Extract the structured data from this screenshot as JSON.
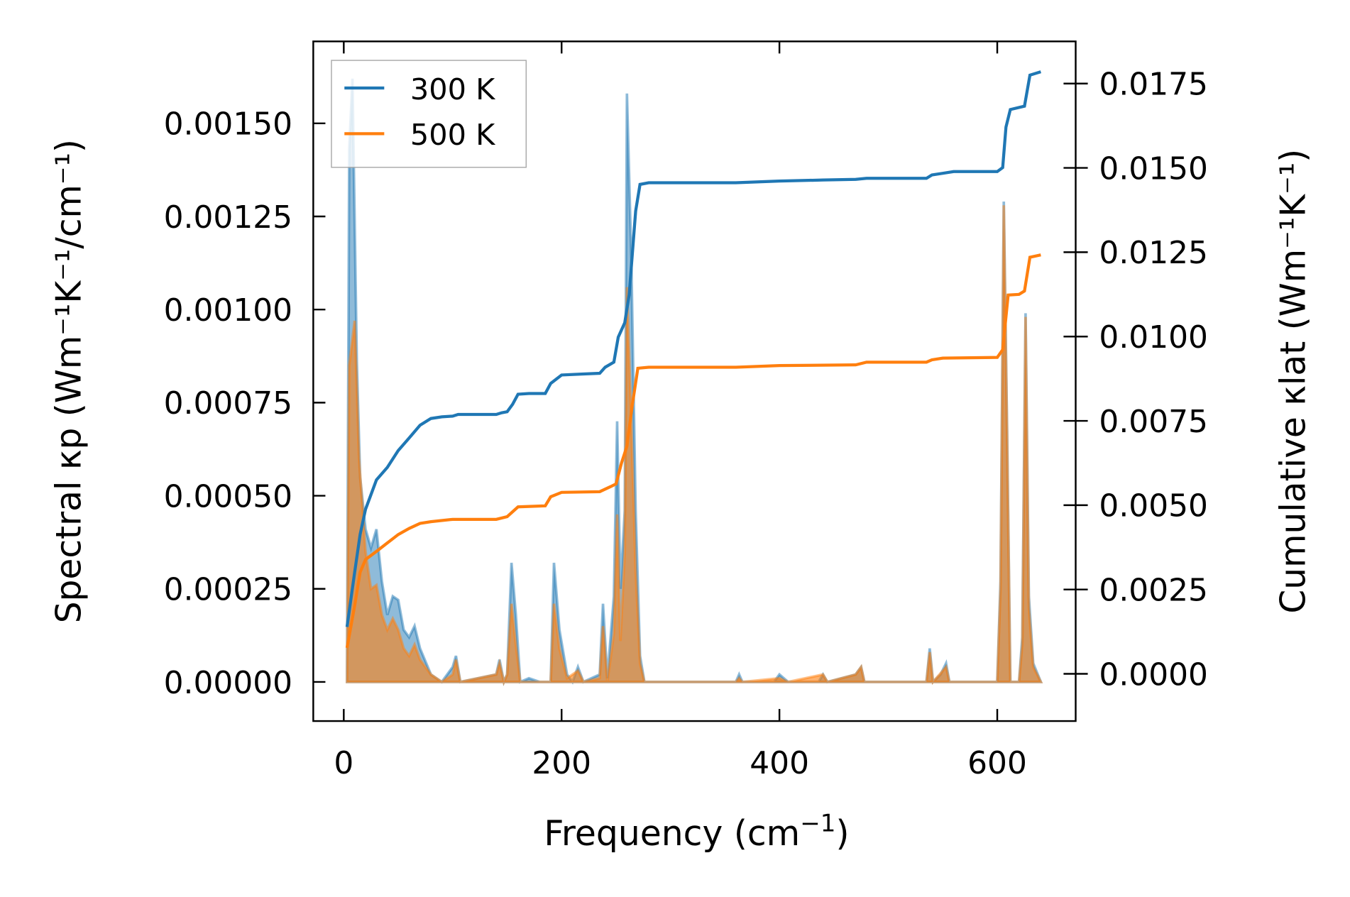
{
  "chart_data": {
    "type": "line",
    "xlabel": "Frequency (cm",
    "xlabel_sup": "−1",
    "xlabel_end": ")",
    "ylabel_left": "Spectral κp (Wm⁻¹K⁻¹/cm⁻¹)",
    "ylabel_right": "Cumulative κlat (Wm⁻¹K⁻¹)",
    "xlim": [
      -28,
      672
    ],
    "ylim_left": [
      -0.000105,
      0.00172
    ],
    "ylim_right": [
      -0.0014,
      0.01875
    ],
    "x_ticks": [
      0,
      200,
      400,
      600
    ],
    "x_tick_labels": [
      "0",
      "200",
      "400",
      "600"
    ],
    "y_left_ticks": [
      0,
      0.00025,
      0.0005,
      0.00075,
      0.001,
      0.00125,
      0.0015
    ],
    "y_left_tick_labels": [
      "0.00000",
      "0.00025",
      "0.00050",
      "0.00075",
      "0.00100",
      "0.00125",
      "0.00150"
    ],
    "y_right_ticks": [
      0,
      0.0025,
      0.005,
      0.0075,
      0.01,
      0.0125,
      0.015,
      0.0175
    ],
    "y_right_tick_labels": [
      "0.0000",
      "0.0025",
      "0.0050",
      "0.0075",
      "0.0100",
      "0.0125",
      "0.0150",
      "0.0175"
    ],
    "legend": {
      "placement": "top-left",
      "entries": [
        "300 K",
        "500 K"
      ]
    },
    "colors": {
      "300 K": "#1f77b4",
      "500 K": "#ff7f0e"
    },
    "series": [
      {
        "name": "300 K",
        "spectral": {
          "x": [
            3,
            5,
            8,
            12,
            15,
            20,
            25,
            30,
            35,
            40,
            45,
            50,
            55,
            60,
            65,
            70,
            80,
            90,
            100,
            103,
            107,
            140,
            143,
            147,
            150,
            154,
            158,
            162,
            170,
            180,
            190,
            193,
            198,
            205,
            210,
            215,
            220,
            235,
            238,
            242,
            248,
            251,
            254,
            258,
            260,
            264,
            268,
            272,
            276,
            360,
            363,
            366,
            395,
            400,
            408,
            436,
            440,
            444,
            470,
            475,
            478,
            535,
            538,
            541,
            548,
            553,
            556,
            600,
            603,
            606,
            609,
            612,
            620,
            623,
            626,
            629,
            633,
            640
          ],
          "y": [
            2.5e-05,
            0.00143,
            0.00162,
            0.00086,
            0.00055,
            0.00041,
            0.00036,
            0.00041,
            0.00027,
            0.00018,
            0.00023,
            0.00022,
            0.00014,
            0.00012,
            0.00015,
            9e-05,
            2e-05,
            0.0,
            4e-05,
            7e-05,
            0.0,
            2e-05,
            6e-05,
            0.0,
            2e-05,
            0.00032,
            0.00018,
            0.0,
            1e-05,
            0.0,
            0.0,
            0.00032,
            0.00014,
            2e-05,
            0.0,
            4e-05,
            0.0,
            2e-05,
            0.00021,
            1e-05,
            0.00023,
            0.0007,
            0.00025,
            0.00046,
            0.00158,
            0.00114,
            0.00046,
            7e-05,
            0.0,
            0.0,
            2e-05,
            0.0,
            0.0,
            2e-05,
            0.0,
            0.0,
            2e-05,
            0.0,
            2e-05,
            4e-05,
            0.0,
            0.0,
            9e-05,
            0.0,
            2e-05,
            5e-05,
            0.0,
            0.0,
            0.00027,
            0.00129,
            0.00068,
            0.0,
            0.0,
            0.00012,
            0.00099,
            0.00023,
            5e-05,
            0.0
          ]
        },
        "cumulative": {
          "x": [
            3,
            10,
            15,
            20,
            30,
            40,
            50,
            60,
            70,
            80,
            90,
            100,
            105,
            140,
            145,
            150,
            155,
            160,
            170,
            185,
            190,
            200,
            220,
            235,
            240,
            248,
            252,
            258,
            262,
            265,
            268,
            272,
            280,
            360,
            400,
            440,
            470,
            480,
            535,
            540,
            550,
            560,
            600,
            605,
            608,
            612,
            625,
            630,
            640
          ],
          "y": [
            0.00139,
            0.00301,
            0.00413,
            0.00488,
            0.00575,
            0.00612,
            0.00662,
            0.00699,
            0.00737,
            0.00757,
            0.00762,
            0.00764,
            0.00769,
            0.00769,
            0.00774,
            0.00777,
            0.00799,
            0.00829,
            0.00831,
            0.00831,
            0.00861,
            0.00886,
            0.00889,
            0.00891,
            0.00909,
            0.00924,
            0.00998,
            0.01041,
            0.01123,
            0.01247,
            0.01372,
            0.01451,
            0.01456,
            0.01456,
            0.01461,
            0.01464,
            0.01466,
            0.01469,
            0.01469,
            0.01479,
            0.01484,
            0.01489,
            0.01489,
            0.01501,
            0.01621,
            0.01673,
            0.01683,
            0.01775,
            0.01785
          ]
        }
      },
      {
        "name": "500 K",
        "spectral": {
          "x": [
            3,
            5,
            10,
            14,
            20,
            25,
            30,
            35,
            40,
            45,
            50,
            55,
            60,
            65,
            70,
            80,
            90,
            100,
            103,
            107,
            140,
            143,
            147,
            150,
            154,
            158,
            162,
            190,
            193,
            198,
            205,
            215,
            220,
            235,
            238,
            242,
            248,
            251,
            254,
            258,
            260,
            264,
            268,
            272,
            276,
            360,
            363,
            366,
            400,
            408,
            440,
            444,
            470,
            475,
            478,
            535,
            538,
            541,
            553,
            556,
            600,
            603,
            606,
            609,
            612,
            620,
            623,
            626,
            629,
            633,
            640
          ],
          "y": [
            0.0,
            0.00085,
            0.00097,
            0.0006,
            0.00035,
            0.00025,
            0.00026,
            0.00018,
            0.00014,
            0.00017,
            0.00014,
            9e-05,
            7e-05,
            0.0001,
            6e-05,
            2e-05,
            0.0,
            2e-05,
            6e-05,
            0.0,
            2e-05,
            5e-05,
            0.0,
            2e-05,
            0.00021,
            0.0001,
            0.0,
            0.0,
            0.00021,
            9e-05,
            1e-05,
            3e-05,
            0.0,
            1e-05,
            0.00015,
            0.0,
            0.00013,
            0.00045,
            0.00011,
            0.00035,
            0.00106,
            0.0007,
            0.0003,
            5e-05,
            0.0,
            0.0,
            1e-05,
            0.0,
            1e-05,
            0.0,
            2e-05,
            0.0,
            2e-05,
            4e-05,
            0.0,
            0.0,
            8e-05,
            0.0,
            4e-05,
            0.0,
            0.0,
            0.00025,
            0.00128,
            0.00067,
            0.0,
            0.0,
            0.0001,
            0.00098,
            0.0002,
            4e-05,
            0.0
          ]
        },
        "cumulative": {
          "x": [
            3,
            10,
            15,
            20,
            30,
            40,
            50,
            60,
            70,
            80,
            100,
            140,
            150,
            160,
            185,
            190,
            200,
            235,
            245,
            250,
            255,
            260,
            265,
            270,
            280,
            360,
            400,
            470,
            480,
            535,
            540,
            550,
            600,
            605,
            610,
            620,
            625,
            630,
            640
          ],
          "y": [
            0.00077,
            0.00202,
            0.00301,
            0.00339,
            0.00363,
            0.00388,
            0.00413,
            0.00431,
            0.00446,
            0.00451,
            0.00458,
            0.00458,
            0.00466,
            0.00495,
            0.00498,
            0.00525,
            0.00538,
            0.0054,
            0.00555,
            0.00563,
            0.00625,
            0.00675,
            0.00799,
            0.00906,
            0.00909,
            0.00909,
            0.00914,
            0.00916,
            0.00924,
            0.00924,
            0.00931,
            0.00936,
            0.00938,
            0.00961,
            0.01123,
            0.01125,
            0.01135,
            0.01235,
            0.01242
          ]
        }
      }
    ]
  }
}
